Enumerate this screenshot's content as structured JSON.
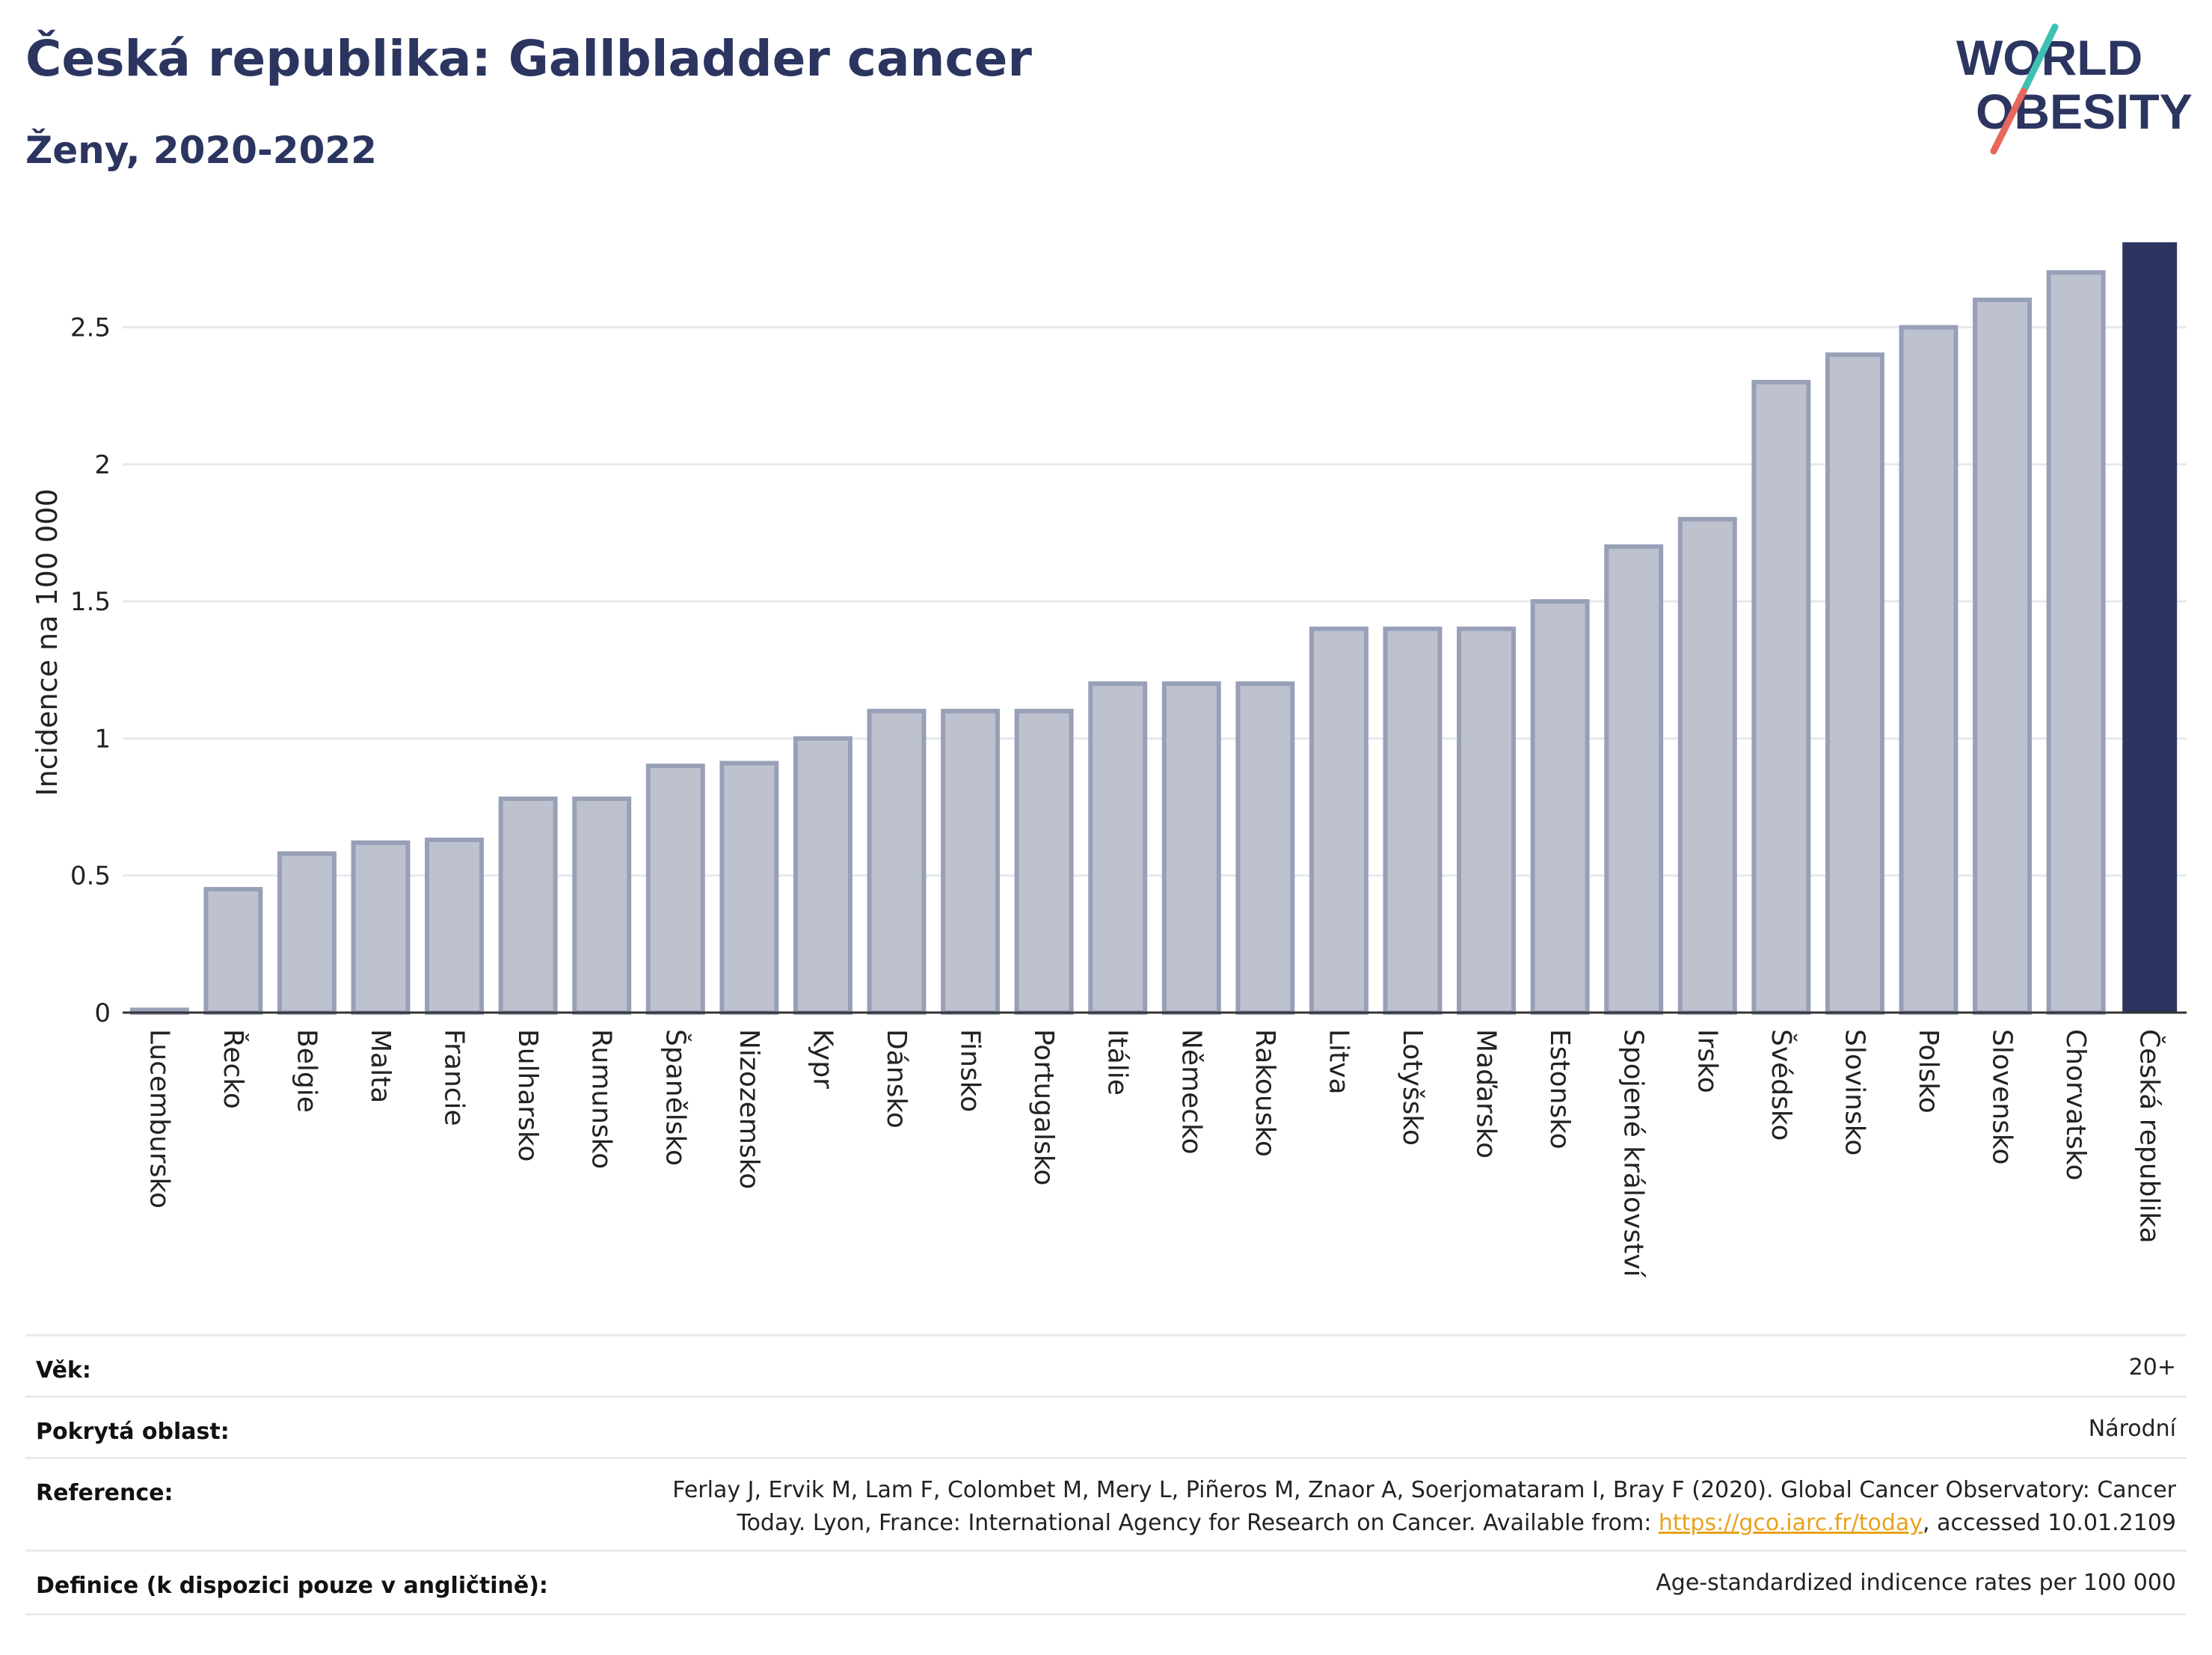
{
  "header": {
    "title": "Česká republika: Gallbladder cancer",
    "subtitle": "Ženy, 2020-2022"
  },
  "logo": {
    "line1": "WORLD",
    "line2": "OBESITY",
    "colors": {
      "text": "#2b3560",
      "slash_top": "#3ec1b3",
      "slash_bottom": "#e8665a"
    }
  },
  "chart_data": {
    "type": "bar",
    "ylabel": "Incidence na 100 000",
    "xlabel": "",
    "ylim": [
      0,
      2.81
    ],
    "yticks": [
      0,
      0.5,
      1,
      1.5,
      2,
      2.5
    ],
    "ytick_labels": [
      "0",
      "0.5",
      "1",
      "1.5",
      "2",
      "2.5"
    ],
    "grid": true,
    "highlight": "Česká republika",
    "colors": {
      "bar": "#bec2cf",
      "bar_border": "#98a0b8",
      "highlight": "#2b3560"
    },
    "categories": [
      "Lucembursko",
      "Řecko",
      "Belgie",
      "Malta",
      "Francie",
      "Bulharsko",
      "Rumunsko",
      "Španělsko",
      "Nizozemsko",
      "Kypr",
      "Dánsko",
      "Finsko",
      "Portugalsko",
      "Itálie",
      "Německo",
      "Rakousko",
      "Litva",
      "Lotyšsko",
      "Maďarsko",
      "Estonsko",
      "Spojené království",
      "Irsko",
      "Švédsko",
      "Slovinsko",
      "Polsko",
      "Slovensko",
      "Chorvatsko",
      "Česká republika"
    ],
    "values": [
      0.01,
      0.45,
      0.58,
      0.62,
      0.63,
      0.78,
      0.78,
      0.9,
      0.91,
      1.0,
      1.1,
      1.1,
      1.1,
      1.2,
      1.2,
      1.2,
      1.4,
      1.4,
      1.4,
      1.5,
      1.7,
      1.8,
      2.3,
      2.4,
      2.5,
      2.6,
      2.7,
      2.81
    ]
  },
  "info": {
    "age_label": "Věk:",
    "age_value": "20+",
    "area_label": "Pokrytá oblast:",
    "area_value": "Národní",
    "reference_label": "Reference:",
    "reference_text_1": "Ferlay J, Ervik M, Lam F, Colombet M, Mery L, Piñeros M, Znaor A, Soerjomataram I, Bray F (2020). Global Cancer Observatory: Cancer",
    "reference_text_2": "Today. Lyon, France: International Agency for Research on Cancer. Available from: ",
    "reference_link": "https://gco.iarc.fr/today",
    "reference_text_3": ", accessed 10.01.2109",
    "definition_label": "Definice (k dispozici pouze v angličtině):",
    "definition_value": "Age-standardized indicence rates per 100 000"
  }
}
